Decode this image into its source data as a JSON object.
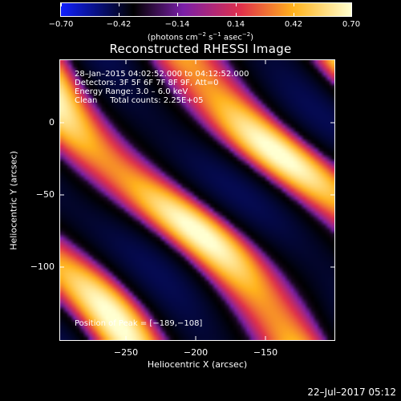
{
  "colorbar": {
    "labels": [
      "−0.70",
      "−0.42",
      "−0.14",
      "0.14",
      "0.42",
      "0.70"
    ],
    "units_prefix": "(photons cm",
    "units_sup1": "−2",
    "units_mid1": " s",
    "units_sup2": "−1",
    "units_mid2": " asec",
    "units_sup3": "−2",
    "units_suffix": ")",
    "colors": [
      "#1020ff",
      "#000000",
      "#7a1fa8",
      "#e0304a",
      "#ffb21c",
      "#ffffd0"
    ]
  },
  "title": "Reconstructed RHESSI Image",
  "annotations": {
    "line1": "28–Jan–2015 04:02:52.000 to 04:12:52.000",
    "line2": "Detectors: 3F 5F 6F 7F 8F 9F, Att=0",
    "line3": "Energy Range: 3.0 – 6.0 keV",
    "line4": "Clean     Total counts: 2.25E+05",
    "peak": "Position of Peak = [−189,−108]"
  },
  "axes": {
    "xlabel": "Heliocentric X (arcsec)",
    "ylabel": "Heliocentric Y (arcsec)",
    "xticks": [
      "−250",
      "−200",
      "−150"
    ],
    "yticks": [
      "0",
      "−50",
      "−100"
    ]
  },
  "datestamp": "22–Jul–2017 05:12"
}
